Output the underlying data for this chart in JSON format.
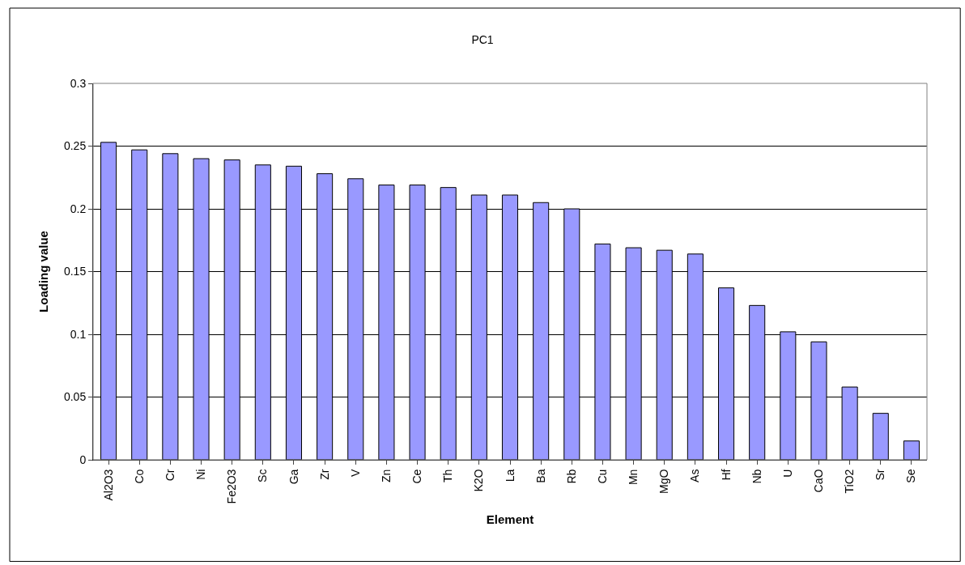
{
  "chart_data": {
    "type": "bar",
    "title": "PC1",
    "xlabel": "Element",
    "ylabel": "Loading value",
    "categories": [
      "Al2O3",
      "Co",
      "Cr",
      "Ni",
      "Fe2O3",
      "Sc",
      "Ga",
      "Zr",
      "V",
      "Zn",
      "Ce",
      "Th",
      "K2O",
      "La",
      "Ba",
      "Rb",
      "Cu",
      "Mn",
      "MgO",
      "As",
      "Hf",
      "Nb",
      "U",
      "CaO",
      "TiO2",
      "Sr",
      "Se"
    ],
    "values": [
      0.253,
      0.247,
      0.244,
      0.24,
      0.239,
      0.235,
      0.234,
      0.228,
      0.224,
      0.219,
      0.219,
      0.217,
      0.211,
      0.211,
      0.205,
      0.2,
      0.172,
      0.169,
      0.167,
      0.164,
      0.137,
      0.123,
      0.102,
      0.094,
      0.058,
      0.037,
      0.015
    ],
    "color": "#9999ff",
    "ylim": [
      0,
      0.3
    ],
    "yticks": [
      0,
      0.05,
      0.1,
      0.15,
      0.2,
      0.25,
      0.3
    ],
    "grid": "y"
  }
}
